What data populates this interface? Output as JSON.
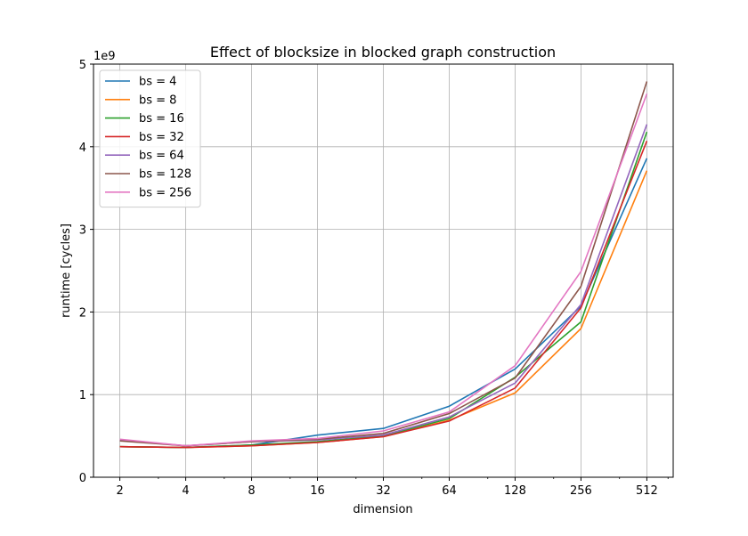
{
  "chart_data": {
    "type": "line",
    "title": "Effect of blocksize in blocked graph construction",
    "xlabel": "dimension",
    "ylabel": "runtime [cycles]",
    "y_offset_label": "1e9",
    "x_scale": "log2",
    "x": [
      2,
      4,
      8,
      16,
      32,
      64,
      128,
      256,
      512
    ],
    "x_tick_labels": [
      "2",
      "4",
      "8",
      "16",
      "32",
      "64",
      "128",
      "256",
      "512"
    ],
    "y_ticks": [
      0,
      1,
      2,
      3,
      4,
      5
    ],
    "y_tick_labels": [
      "0",
      "1",
      "2",
      "3",
      "4",
      "5"
    ],
    "ylim": [
      0,
      5
    ],
    "grid": true,
    "legend_position": "top-left",
    "series": [
      {
        "name": "bs = 4",
        "color": "#1f77b4",
        "values": [
          0.37,
          0.36,
          0.39,
          0.51,
          0.59,
          0.86,
          1.31,
          2.07,
          3.86
        ]
      },
      {
        "name": "bs = 8",
        "color": "#ff7f0e",
        "values": [
          0.37,
          0.36,
          0.38,
          0.42,
          0.49,
          0.69,
          1.02,
          1.8,
          3.71
        ]
      },
      {
        "name": "bs = 16",
        "color": "#2ca02c",
        "values": [
          0.37,
          0.36,
          0.39,
          0.43,
          0.5,
          0.71,
          1.21,
          1.88,
          4.18
        ]
      },
      {
        "name": "bs = 32",
        "color": "#d62728",
        "values": [
          0.37,
          0.36,
          0.38,
          0.42,
          0.49,
          0.68,
          1.08,
          2.05,
          4.07
        ]
      },
      {
        "name": "bs = 64",
        "color": "#9467bd",
        "values": [
          0.45,
          0.38,
          0.43,
          0.45,
          0.51,
          0.73,
          1.14,
          2.09,
          4.27
        ]
      },
      {
        "name": "bs = 128",
        "color": "#8c564b",
        "values": [
          0.44,
          0.38,
          0.43,
          0.46,
          0.53,
          0.77,
          1.2,
          2.31,
          4.79
        ]
      },
      {
        "name": "bs = 256",
        "color": "#e377c2",
        "values": [
          0.46,
          0.38,
          0.44,
          0.47,
          0.56,
          0.79,
          1.35,
          2.49,
          4.64
        ]
      }
    ]
  }
}
